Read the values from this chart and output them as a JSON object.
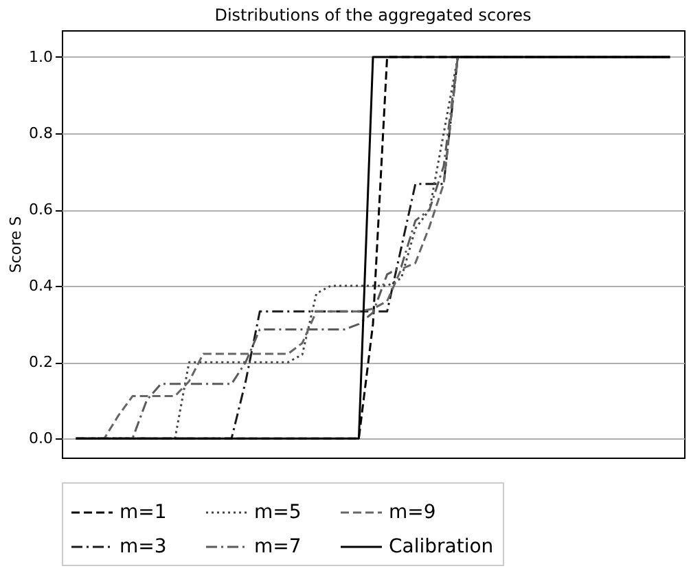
{
  "chart_data": {
    "type": "line",
    "title": "Distributions of the aggregated scores",
    "ylabel": "Score S",
    "categories": [
      null,
      null,
      null,
      null,
      null,
      null,
      null,
      null,
      null,
      null,
      null,
      null,
      null,
      null,
      null,
      null,
      null,
      null,
      null,
      null,
      null,
      null,
      null,
      null,
      null,
      null,
      null,
      null,
      null,
      null,
      null,
      null,
      null,
      null,
      null,
      null,
      null,
      null,
      null,
      null,
      null,
      null,
      null
    ],
    "series": [
      {
        "name": "m=1",
        "color": "#000000",
        "line_style": "dashed",
        "values": [
          0,
          0,
          0,
          0,
          0,
          0,
          0,
          0,
          0,
          0,
          0,
          0,
          0,
          0,
          0,
          0,
          0,
          0,
          0,
          0,
          0,
          0.3,
          1,
          1,
          1,
          1,
          1,
          1,
          1,
          1,
          1,
          1,
          1,
          1,
          1,
          1,
          1,
          1,
          1,
          1,
          1,
          1,
          1
        ]
      },
      {
        "name": "m=3",
        "color": "#1a1a1a",
        "line_style": "dashdot",
        "values": [
          0,
          0,
          0,
          0,
          0,
          0,
          0,
          0,
          0,
          0,
          0,
          0,
          0.15,
          0.333,
          0.333,
          0.333,
          0.333,
          0.333,
          0.333,
          0.333,
          0.333,
          0.333,
          0.333,
          0.5,
          0.667,
          0.667,
          0.667,
          1,
          1,
          1,
          1,
          1,
          1,
          1,
          1,
          1,
          1,
          1,
          1,
          1,
          1,
          1,
          1
        ]
      },
      {
        "name": "m=5",
        "color": "#444444",
        "line_style": "dotted",
        "values": [
          0,
          0,
          0,
          0,
          0,
          0,
          0,
          0,
          0.2,
          0.2,
          0.2,
          0.2,
          0.2,
          0.2,
          0.2,
          0.2,
          0.22,
          0.38,
          0.4,
          0.4,
          0.4,
          0.4,
          0.4,
          0.42,
          0.55,
          0.6,
          0.8,
          1,
          1,
          1,
          1,
          1,
          1,
          1,
          1,
          1,
          1,
          1,
          1,
          1,
          1,
          1,
          1
        ]
      },
      {
        "name": "m=7",
        "color": "#5a5a5a",
        "line_style": "dashdot",
        "values": [
          0,
          0,
          0,
          0,
          0,
          0.1,
          0.143,
          0.143,
          0.143,
          0.143,
          0.143,
          0.143,
          0.2,
          0.286,
          0.286,
          0.286,
          0.286,
          0.286,
          0.286,
          0.286,
          0.3,
          0.33,
          0.43,
          0.45,
          0.571,
          0.6,
          0.714,
          1,
          1,
          1,
          1,
          1,
          1,
          1,
          1,
          1,
          1,
          1,
          1,
          1,
          1,
          1,
          1
        ]
      },
      {
        "name": "m=9",
        "color": "#666666",
        "line_style": "dashed",
        "values": [
          0,
          0,
          0,
          0.06,
          0.111,
          0.111,
          0.111,
          0.111,
          0.15,
          0.222,
          0.222,
          0.222,
          0.222,
          0.222,
          0.222,
          0.222,
          0.25,
          0.333,
          0.333,
          0.333,
          0.333,
          0.34,
          0.36,
          0.444,
          0.46,
          0.556,
          0.667,
          1,
          1,
          1,
          1,
          1,
          1,
          1,
          1,
          1,
          1,
          1,
          1,
          1,
          1,
          1,
          1
        ]
      },
      {
        "name": "Calibration",
        "color": "#000000",
        "line_style": "solid",
        "values": [
          0,
          0,
          0,
          0,
          0,
          0,
          0,
          0,
          0,
          0,
          0,
          0,
          0,
          0,
          0,
          0,
          0,
          0,
          0,
          0,
          0,
          1,
          1,
          1,
          1,
          1,
          1,
          1,
          1,
          1,
          1,
          1,
          1,
          1,
          1,
          1,
          1,
          1,
          1,
          1,
          1,
          1,
          1
        ]
      }
    ],
    "ylim": [
      -0.05,
      1.07
    ],
    "yticks": [
      {
        "value": 0,
        "label": "0.0"
      },
      {
        "value": 0.2,
        "label": "0.2"
      },
      {
        "value": 0.4,
        "label": "0.4"
      },
      {
        "value": 0.6,
        "label": "0.6"
      },
      {
        "value": 0.8,
        "label": "0.8"
      },
      {
        "value": 1,
        "label": "1.0"
      }
    ],
    "grid": "y",
    "legend": "bottom",
    "tick_labels": "y"
  }
}
